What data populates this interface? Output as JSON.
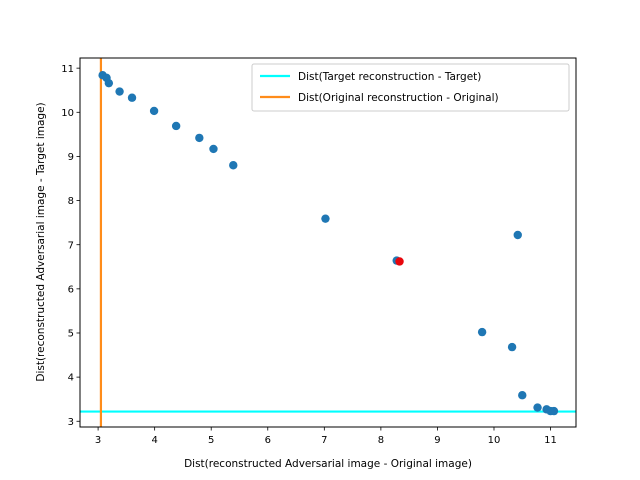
{
  "chart_data": {
    "type": "scatter",
    "xlabel": "Dist(reconstructed Adversarial image - Original image)",
    "ylabel": "Dist(reconstructed Adversarial image - Target image)",
    "xlim": [
      2.68,
      11.45
    ],
    "ylim": [
      2.87,
      11.23
    ],
    "xticks": [
      3,
      4,
      5,
      6,
      7,
      8,
      9,
      10,
      11
    ],
    "yticks": [
      3,
      4,
      5,
      6,
      7,
      8,
      9,
      10,
      11
    ],
    "grid": false,
    "legend_position": "top-right",
    "series": [
      {
        "color": "#1f77b4",
        "points": [
          [
            3.08,
            10.84
          ],
          [
            3.15,
            10.78
          ],
          [
            3.19,
            10.66
          ],
          [
            3.38,
            10.47
          ],
          [
            3.6,
            10.33
          ],
          [
            3.99,
            10.03
          ],
          [
            4.38,
            9.69
          ],
          [
            4.79,
            9.42
          ],
          [
            5.04,
            9.17
          ],
          [
            5.39,
            8.8
          ],
          [
            7.02,
            7.59
          ],
          [
            8.28,
            6.64
          ],
          [
            10.42,
            7.22
          ],
          [
            9.79,
            5.02
          ],
          [
            10.32,
            4.68
          ],
          [
            10.5,
            3.59
          ],
          [
            10.77,
            3.31
          ],
          [
            10.93,
            3.27
          ],
          [
            11.0,
            3.23
          ],
          [
            11.06,
            3.23
          ]
        ]
      },
      {
        "color": "#e8060c",
        "points": [
          [
            8.33,
            6.62
          ]
        ]
      }
    ],
    "reference_lines": [
      {
        "name": "Dist(Target reconstruction - Target)",
        "orientation": "horizontal",
        "value": 3.22,
        "color": "#00ffff"
      },
      {
        "name": "Dist(Original reconstruction - Original)",
        "orientation": "vertical",
        "value": 3.05,
        "color": "#ff8c1a"
      }
    ]
  }
}
